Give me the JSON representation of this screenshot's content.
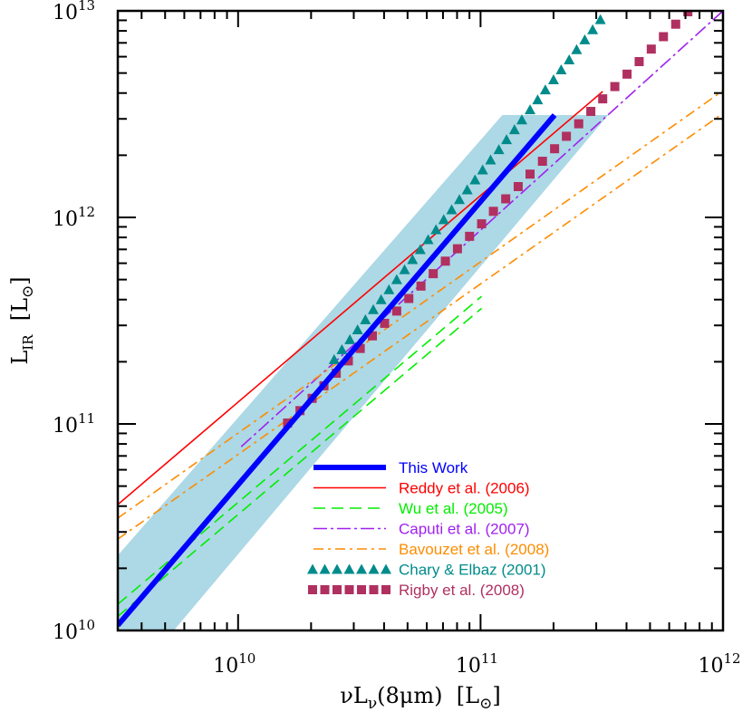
{
  "chart_data": {
    "type": "line",
    "x_scale": "log",
    "y_scale": "log",
    "xlim": [
      3190000000.0,
      1000000000000.0
    ],
    "ylim": [
      10000000000.0,
      10000000000000.0
    ],
    "grid": false,
    "legend_placement": "bottom-center",
    "xlabel": {
      "main": "νL",
      "sub": "ν",
      "rest": "(8μm)  [L",
      "sub2": "⊙",
      "end": "]"
    },
    "ylabel": {
      "main": "L",
      "sub": "IR",
      "rest": "  [L",
      "sub2": "⊙",
      "end": "]"
    },
    "x_ticks": [
      {
        "base": "10",
        "exp": "10",
        "value": 10000000000.0
      },
      {
        "base": "10",
        "exp": "11",
        "value": 100000000000.0
      },
      {
        "base": "10",
        "exp": "12",
        "value": 1000000000000.0
      }
    ],
    "y_ticks": [
      {
        "base": "10",
        "exp": "10",
        "value": 10000000000.0
      },
      {
        "base": "10",
        "exp": "11",
        "value": 100000000000.0
      },
      {
        "base": "10",
        "exp": "12",
        "value": 1000000000000.0
      },
      {
        "base": "10",
        "exp": "13",
        "value": 10000000000000.0
      }
    ],
    "band": {
      "color": "#add8e6",
      "points": [
        [
          3190000000.0,
          23100000000.0
        ],
        [
          123000000000.0,
          3130000000000.0
        ],
        [
          336000000000.0,
          3130000000000.0
        ],
        [
          5430000000.0,
          10000000000.0
        ],
        [
          3190000000.0,
          10000000000.0
        ]
      ]
    },
    "series": [
      {
        "name": "This Work",
        "color": "#0000ff",
        "style": "thick",
        "lines": [
          [
            [
              3190000000.0,
              10600000000.0
            ],
            [
              202000000000.0,
              3130000000000.0
            ]
          ]
        ]
      },
      {
        "name": "Reddy et al. (2006)",
        "color": "#ff0000",
        "style": "solid",
        "lines": [
          [
            [
              3190000000.0,
              40700000000.0
            ],
            [
              319000000000.0,
              4070000000000.0
            ]
          ]
        ]
      },
      {
        "name": "Wu et al. (2005)",
        "color": "#00ee00",
        "style": "dashed",
        "lines": [
          [
            [
              3190000000.0,
              13400000000.0
            ],
            [
              101000000000.0,
              415000000000.0
            ]
          ],
          [
            [
              3190000000.0,
              11700000000.0
            ],
            [
              101000000000.0,
              363000000000.0
            ]
          ]
        ]
      },
      {
        "name": "Caputi et al. (2007)",
        "color": "#a020f0",
        "style": "dashdot",
        "lines": [
          [
            [
              10300000000.0,
              77600000000.0
            ],
            [
              1000000000000.0,
              10000000000000.0
            ]
          ]
        ]
      },
      {
        "name": "Bavouzet et al. (2008)",
        "color": "#ff8c00",
        "style": "dashdot2",
        "lines": [
          [
            [
              3190000000.0,
              35000000000.0
            ],
            [
              1000000000000.0,
              4110000000000.0
            ]
          ],
          [
            [
              3190000000.0,
              27700000000.0
            ],
            [
              1000000000000.0,
              3190000000000.0
            ]
          ]
        ]
      },
      {
        "name": "Chary & Elbaz (2001)",
        "color": "#008b8b",
        "style": "triangles",
        "x": [
          24900000000.0,
          26800000000.0,
          28900000000.0,
          31100000000.0,
          33500000000.0,
          36100000000.0,
          38900000000.0,
          41900000000.0,
          45100000000.0,
          48600000000.0,
          52400000000.0,
          56400000000.0,
          60800000000.0,
          65500000000.0,
          70500000000.0,
          76000000000.0,
          81800000000.0,
          88100000000.0,
          94900000000.0,
          102000000000.0,
          110000000000.0,
          119000000000.0,
          128000000000.0,
          138000000000.0,
          148000000000.0,
          160000000000.0,
          172000000000.0,
          185000000000.0,
          200000000000.0,
          215000000000.0,
          232000000000.0,
          249000000000.0,
          269000000000.0,
          290000000000.0,
          312000000000.0
        ],
        "y": [
          205000000000.0,
          229000000000.0,
          256000000000.0,
          286000000000.0,
          320000000000.0,
          358000000000.0,
          400000000000.0,
          447000000000.0,
          500000000000.0,
          559000000000.0,
          625000000000.0,
          699000000000.0,
          781000000000.0,
          873000000000.0,
          976000000000.0,
          1090000000000.0,
          1220000000000.0,
          1360000000000.0,
          1520000000000.0,
          1700000000000.0,
          1900000000000.0,
          2130000000000.0,
          2380000000000.0,
          2660000000000.0,
          2970000000000.0,
          3320000000000.0,
          3710000000000.0,
          4150000000000.0,
          4640000000000.0,
          5190000000000.0,
          5800000000000.0,
          6490000000000.0,
          7250000000000.0,
          8110000000000.0,
          9070000000000.0
        ]
      },
      {
        "name": "Rigby et al. (2008)",
        "color": "#b03060",
        "style": "squares",
        "x": [
          16000000000.0,
          18000000000.0,
          20200000000.0,
          22600000000.0,
          25400000000.0,
          28500000000.0,
          31900000000.0,
          35800000000.0,
          40200000000.0,
          45100000000.0,
          50600000000.0,
          56800000000.0,
          63800000000.0,
          71600000000.0,
          80300000000.0,
          90100000000.0,
          101000000000.0,
          113000000000.0,
          127000000000.0,
          143000000000.0,
          160000000000.0,
          180000000000.0,
          202000000000.0,
          226000000000.0,
          254000000000.0,
          285000000000.0,
          319000000000.0,
          358000000000.0,
          402000000000.0,
          451000000000.0,
          506000000000.0,
          568000000000.0,
          638000000000.0,
          716000000000.0
        ],
        "y": [
          101000000000.0,
          116000000000.0,
          133000000000.0,
          153000000000.0,
          176000000000.0,
          202000000000.0,
          232000000000.0,
          267000000000.0,
          307000000000.0,
          352000000000.0,
          405000000000.0,
          465000000000.0,
          534000000000.0,
          614000000000.0,
          705000000000.0,
          810000000000.0,
          931000000000.0,
          1070000000000.0,
          1230000000000.0,
          1410000000000.0,
          1620000000000.0,
          1870000000000.0,
          2150000000000.0,
          2470000000000.0,
          2840000000000.0,
          3260000000000.0,
          3750000000000.0,
          4300000000000.0,
          4940000000000.0,
          5680000000000.0,
          6530000000000.0,
          7500000000000.0,
          8620000000000.0,
          9900000000000.0
        ]
      }
    ]
  }
}
